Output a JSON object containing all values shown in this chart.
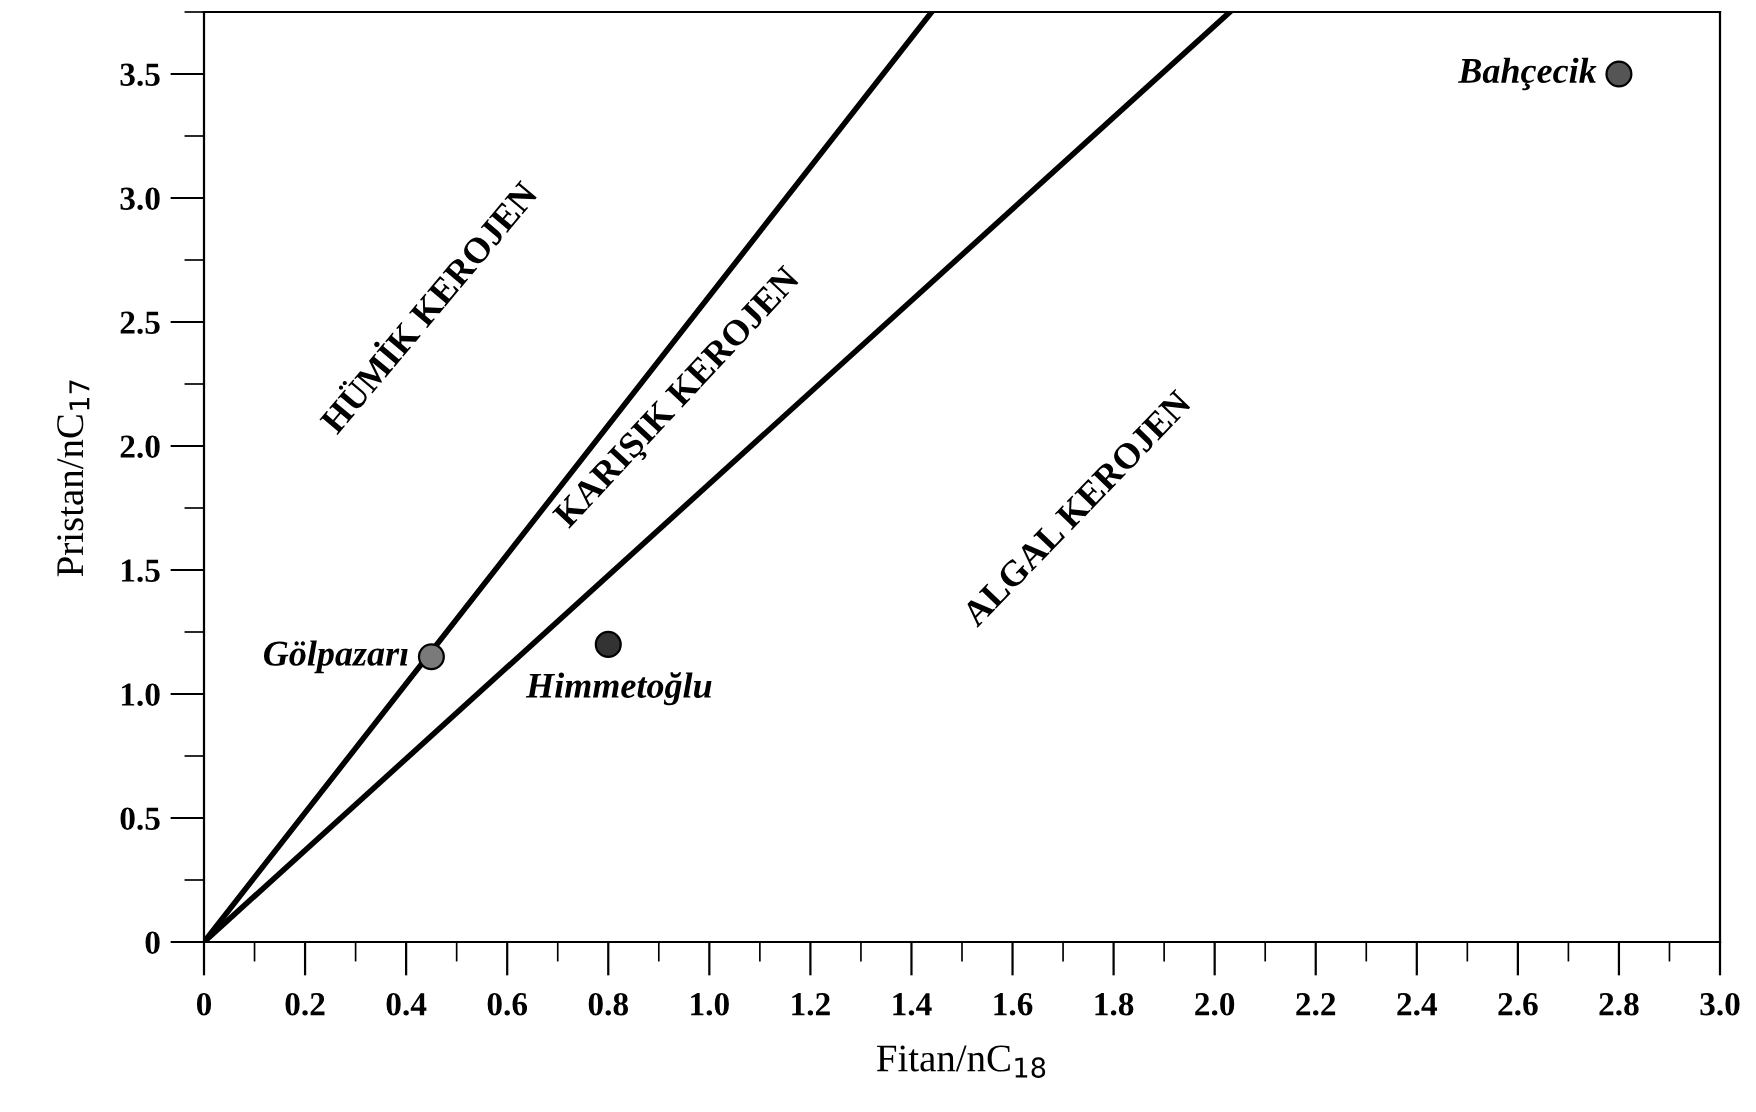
{
  "chart_data": {
    "type": "scatter",
    "xlabel": "Fitan/nC$_{18}$",
    "ylabel": "Pristan/nC$_{17}$",
    "xlim": [
      0,
      3.0
    ],
    "ylim": [
      0,
      3.75
    ],
    "xticks": [
      0,
      0.2,
      0.4,
      0.6,
      0.8,
      {
        "value": 1,
        "label": "1.0"
      },
      1.2,
      1.4,
      1.6,
      1.8,
      {
        "value": 2,
        "label": "2.0"
      },
      2.2,
      2.4,
      2.6,
      2.8,
      {
        "value": 3,
        "label": "3.0"
      }
    ],
    "yticks": [
      0,
      0.5,
      {
        "value": 1,
        "label": "1.0"
      },
      1.5,
      {
        "value": 2,
        "label": "2.0"
      },
      2.5,
      {
        "value": 3,
        "label": "3.0"
      },
      3.5
    ],
    "legend": false,
    "series": [
      {
        "name": "Gölpazarı",
        "x": [
          0.45
        ],
        "values": [
          1.15
        ],
        "color": "#7a7a7a",
        "marker": "circle"
      },
      {
        "name": "Himmetoğlu",
        "x": [
          0.8
        ],
        "values": [
          1.2
        ],
        "color": "#333333",
        "marker": "circle"
      },
      {
        "name": "Bahçecik",
        "x": [
          2.8
        ],
        "values": [
          3.5
        ],
        "color": "#555555",
        "marker": "circle"
      },
      {
        "type": "line",
        "x": [
          0,
          1.44
        ],
        "values": [
          0,
          3.75
        ],
        "color": "#000000",
        "marker": "none"
      },
      {
        "type": "line",
        "x": [
          0,
          2.03
        ],
        "values": [
          0,
          3.75
        ],
        "color": "#000000",
        "marker": "none"
      }
    ],
    "annotations": [
      "HÜMİK KEROJEN",
      "KARIŞIK KEROJEN",
      "ALGAL KEROJEN"
    ]
  }
}
